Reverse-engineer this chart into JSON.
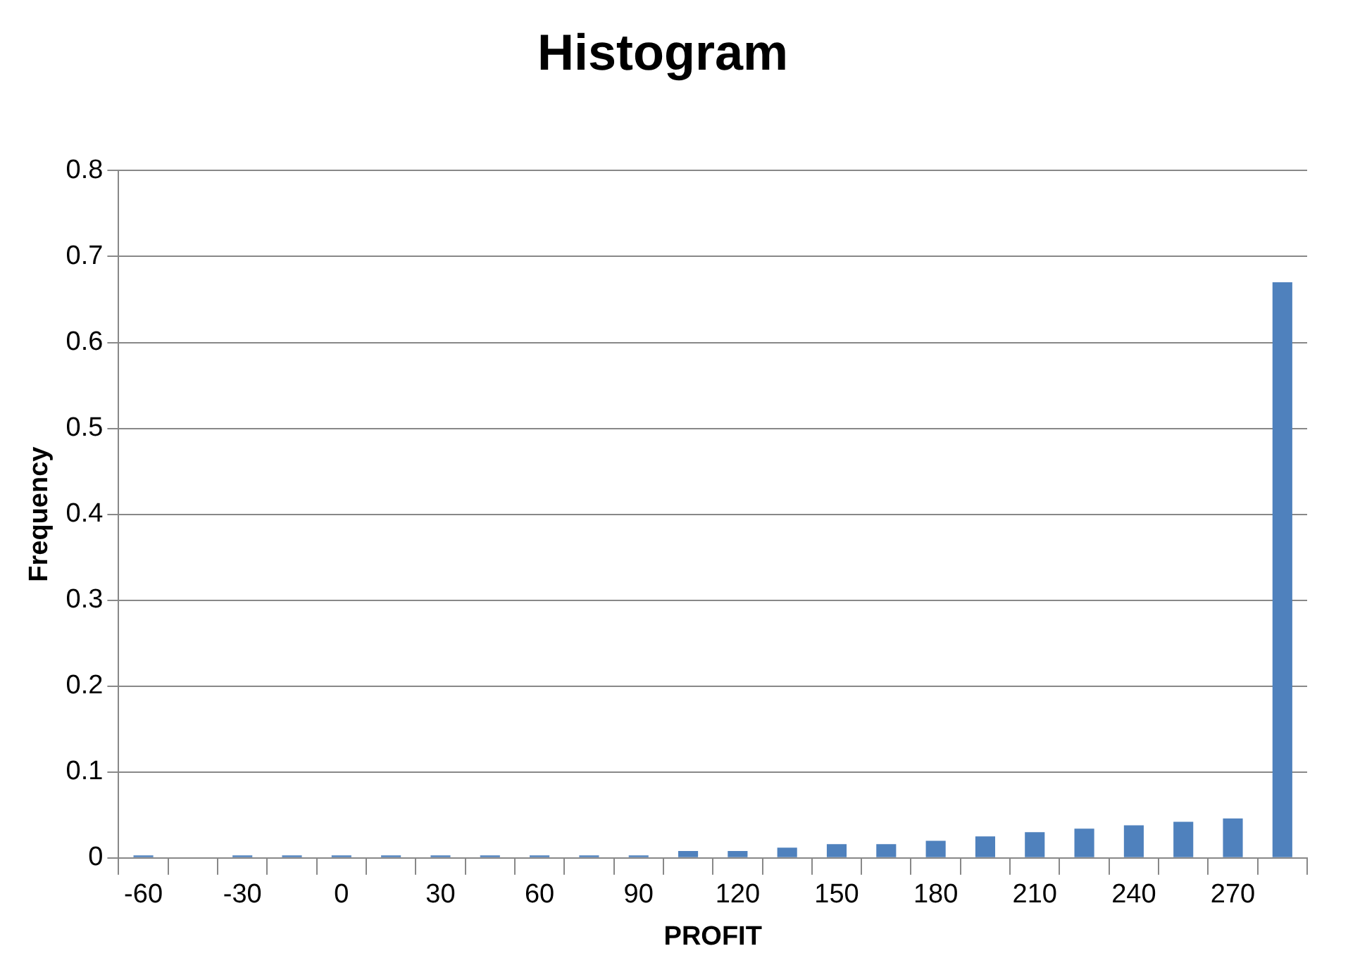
{
  "chart_data": {
    "type": "bar",
    "title": "Histogram",
    "xlabel": "PROFIT",
    "ylabel": "Frequency",
    "categories": [
      "-60",
      null,
      "-30",
      null,
      "0",
      null,
      "30",
      null,
      "60",
      null,
      "90",
      null,
      "120",
      null,
      "150",
      null,
      "180",
      null,
      "210",
      null,
      "240",
      null,
      "270",
      null
    ],
    "values": [
      0.003,
      0,
      0.003,
      0.003,
      0.003,
      0.003,
      0.003,
      0.003,
      0.003,
      0.003,
      0.003,
      0.008,
      0.008,
      0.012,
      0.016,
      0.016,
      0.02,
      0.025,
      0.03,
      0.034,
      0.038,
      0.042,
      0.046,
      0.67
    ],
    "color": "#4f81bd",
    "ylim": [
      0,
      0.8
    ],
    "yticks": [
      0,
      0.1,
      0.2,
      0.3,
      0.4,
      0.5,
      0.6,
      0.7,
      0.8
    ],
    "grid": "y",
    "legend": false
  }
}
